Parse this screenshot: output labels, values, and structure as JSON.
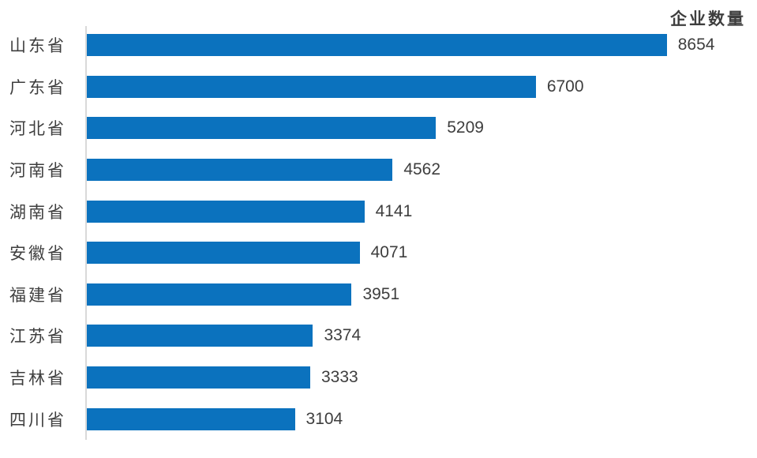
{
  "chart_data": {
    "type": "bar",
    "orientation": "horizontal",
    "title": "企业数量",
    "categories": [
      "山东省",
      "广东省",
      "河北省",
      "河南省",
      "湖南省",
      "安徽省",
      "福建省",
      "江苏省",
      "吉林省",
      "四川省"
    ],
    "values": [
      8654,
      6700,
      5209,
      4562,
      4141,
      4071,
      3951,
      3374,
      3333,
      3104
    ],
    "xlim": [
      0,
      10000
    ],
    "grid": false,
    "legend_position": "top-right",
    "value_labels": "outside-end",
    "colors": {
      "bar": "#0b72be",
      "text": "#3e3e3e",
      "axis_line": "#d9d9d9",
      "background": "#ffffff"
    }
  }
}
